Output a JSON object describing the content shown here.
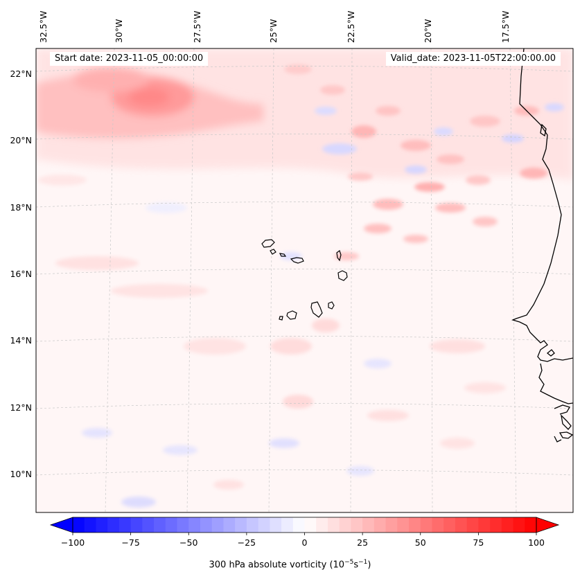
{
  "header": {
    "start_label": "Start date: 2023-11-05_00:00:00",
    "valid_label": "Valid_date: 2023-11-05T22:00:00.00"
  },
  "map": {
    "region": "Eastern tropical Atlantic, Cape Verde islands and West African coast",
    "longitude_ticks": [
      "32.5°W",
      "30°W",
      "27.5°W",
      "25°W",
      "22.5°W",
      "20°W",
      "17.5°W"
    ],
    "latitude_ticks": [
      "22°N",
      "20°N",
      "18°N",
      "16°N",
      "14°N",
      "12°N",
      "10°N"
    ],
    "field": "300 hPa absolute vorticity",
    "colormap": "bwr",
    "colors": {
      "neg": "#0000ff",
      "zero": "#ffffff",
      "pos": "#ff0000",
      "coast": "#000000",
      "grid": "#bbbbbb"
    }
  },
  "colorbar": {
    "label": "300 hPa absolute vorticity (10",
    "label_exp": "−5",
    "label_mid": "s",
    "label_exp2": "−1",
    "label_end": ")",
    "min": -100,
    "max": 100,
    "levels": 40,
    "extend": "both",
    "ticks": [
      -100,
      -75,
      -50,
      -25,
      0,
      25,
      50,
      75,
      100
    ],
    "tick_labels": [
      "−100",
      "−75",
      "−50",
      "−25",
      "0",
      "25",
      "50",
      "75",
      "100"
    ]
  }
}
